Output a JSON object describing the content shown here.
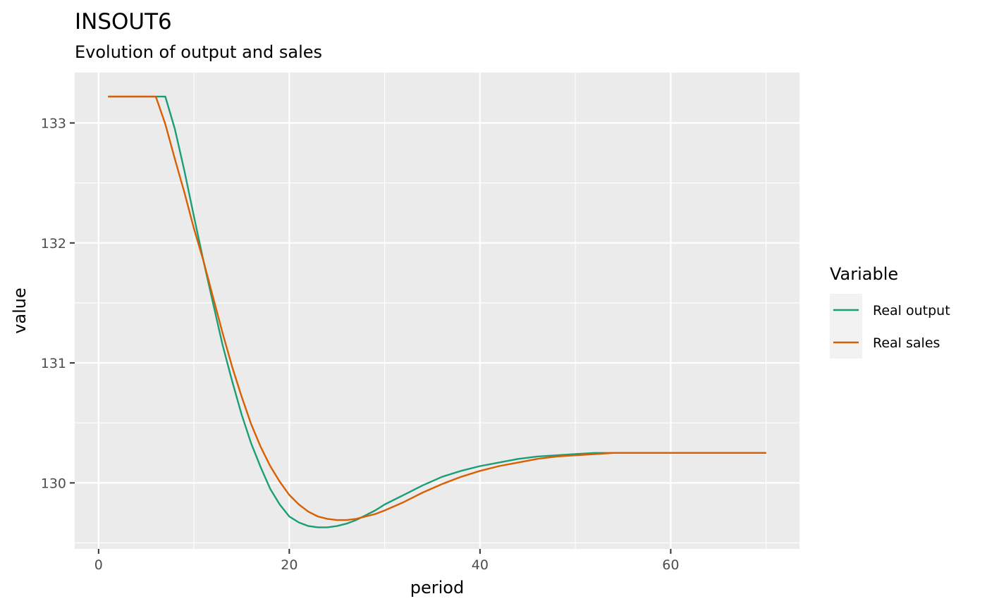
{
  "chart_data": {
    "type": "line",
    "title": "INSOUT6",
    "subtitle": "Evolution of output and sales",
    "xlabel": "period",
    "ylabel": "value",
    "xlim": [
      -2.5,
      73.5
    ],
    "ylim": [
      129.45,
      133.42
    ],
    "x_ticks": [
      0,
      20,
      40,
      60
    ],
    "x_minor_ticks": [
      10,
      30,
      50,
      70
    ],
    "y_ticks": [
      130,
      131,
      132,
      133
    ],
    "y_minor_ticks": [
      129.5,
      130.5,
      131.5,
      132.5
    ],
    "grid": true,
    "legend": {
      "title": "Variable",
      "position": "right"
    },
    "series": [
      {
        "name": "Real output",
        "color": "#1b9e77",
        "x": [
          1,
          2,
          3,
          4,
          5,
          6,
          7,
          8,
          9,
          10,
          11,
          12,
          13,
          14,
          15,
          16,
          17,
          18,
          19,
          20,
          21,
          22,
          23,
          24,
          25,
          26,
          27,
          28,
          29,
          30,
          32,
          34,
          36,
          38,
          40,
          42,
          44,
          46,
          48,
          50,
          52,
          54,
          56,
          58,
          60,
          62,
          64,
          66,
          68,
          70
        ],
        "values": [
          133.22,
          133.22,
          133.22,
          133.22,
          133.22,
          133.22,
          133.22,
          132.95,
          132.6,
          132.22,
          131.85,
          131.5,
          131.15,
          130.85,
          130.57,
          130.33,
          130.13,
          129.95,
          129.82,
          129.72,
          129.67,
          129.64,
          129.63,
          129.63,
          129.64,
          129.66,
          129.69,
          129.73,
          129.77,
          129.82,
          129.9,
          129.98,
          130.05,
          130.1,
          130.14,
          130.17,
          130.2,
          130.22,
          130.23,
          130.24,
          130.25,
          130.25,
          130.25,
          130.25,
          130.25,
          130.25,
          130.25,
          130.25,
          130.25,
          130.25
        ]
      },
      {
        "name": "Real sales",
        "color": "#d95f02",
        "x": [
          1,
          2,
          3,
          4,
          5,
          6,
          7,
          8,
          9,
          10,
          11,
          12,
          13,
          14,
          15,
          16,
          17,
          18,
          19,
          20,
          21,
          22,
          23,
          24,
          25,
          26,
          27,
          28,
          29,
          30,
          32,
          34,
          36,
          38,
          40,
          42,
          44,
          46,
          48,
          50,
          52,
          54,
          56,
          58,
          60,
          62,
          64,
          66,
          68,
          70
        ],
        "values": [
          133.22,
          133.22,
          133.22,
          133.22,
          133.22,
          133.22,
          132.99,
          132.7,
          132.42,
          132.12,
          131.85,
          131.55,
          131.25,
          130.97,
          130.72,
          130.49,
          130.3,
          130.14,
          130.01,
          129.9,
          129.82,
          129.76,
          129.72,
          129.7,
          129.69,
          129.69,
          129.7,
          129.72,
          129.74,
          129.77,
          129.84,
          129.92,
          129.99,
          130.05,
          130.1,
          130.14,
          130.17,
          130.2,
          130.22,
          130.23,
          130.24,
          130.25,
          130.25,
          130.25,
          130.25,
          130.25,
          130.25,
          130.25,
          130.25,
          130.25
        ]
      }
    ]
  }
}
